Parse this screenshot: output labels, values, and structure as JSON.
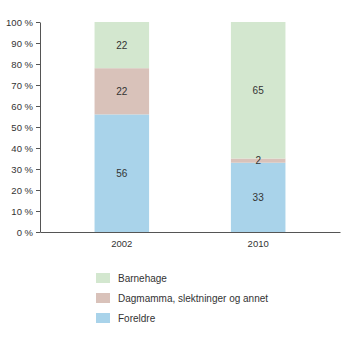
{
  "chart_data": {
    "type": "bar",
    "stacked": true,
    "data_labels": true,
    "categories": [
      "2002",
      "2010"
    ],
    "series": [
      {
        "name": "Foreldre",
        "color": "#a9d3ea",
        "values": [
          56,
          33
        ]
      },
      {
        "name": "Dagmamma, slektninger og annet",
        "color": "#d9c2ba",
        "values": [
          22,
          2
        ]
      },
      {
        "name": "Barnehage",
        "color": "#d3e7cf",
        "values": [
          22,
          65
        ]
      }
    ],
    "ylim": [
      0,
      100
    ],
    "yticks": [
      {
        "value": 0,
        "label": "0 %"
      },
      {
        "value": 10,
        "label": "10 %"
      },
      {
        "value": 20,
        "label": "20 %"
      },
      {
        "value": 30,
        "label": "30 %"
      },
      {
        "value": 40,
        "label": "40 %"
      },
      {
        "value": 50,
        "label": "50 %"
      },
      {
        "value": 60,
        "label": "60 %"
      },
      {
        "value": 70,
        "label": "70 %"
      },
      {
        "value": 80,
        "label": "80 %"
      },
      {
        "value": 90,
        "label": "90 %"
      },
      {
        "value": 100,
        "label": "100 %"
      }
    ],
    "legend": "bottom"
  }
}
